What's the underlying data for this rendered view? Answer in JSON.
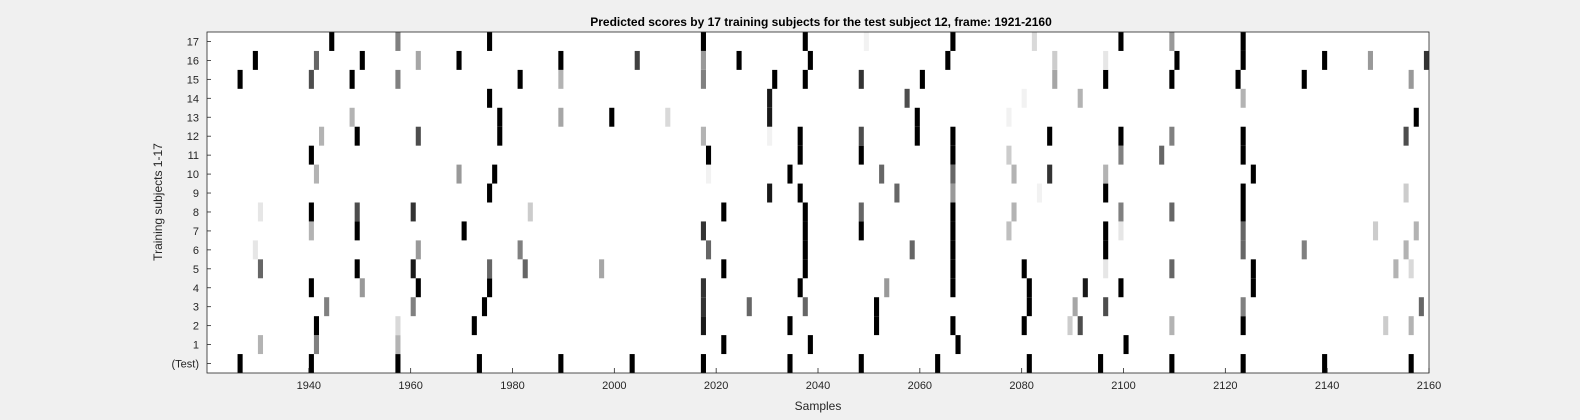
{
  "chart_data": {
    "type": "heatmap",
    "title": "Predicted scores by 17 training subjects for the test subject 12, frame: 1921-2160",
    "xlabel": "Samples",
    "ylabel": "Training subjects 1-17",
    "xlim": [
      1921,
      2160
    ],
    "xticks": [
      1940,
      1960,
      1980,
      2000,
      2020,
      2040,
      2060,
      2080,
      2100,
      2120,
      2140,
      2160
    ],
    "rows": [
      "(Test)",
      "1",
      "2",
      "3",
      "4",
      "5",
      "6",
      "7",
      "8",
      "9",
      "10",
      "11",
      "12",
      "13",
      "14",
      "15",
      "16",
      "17"
    ],
    "value_scale": "0 (white) to 1 (black)",
    "events": [
      {
        "row": "(Test)",
        "marks": [
          [
            1927,
            1
          ],
          [
            1941,
            1
          ],
          [
            1958,
            1
          ],
          [
            1974,
            1
          ],
          [
            1990,
            1
          ],
          [
            2004,
            1
          ],
          [
            2018,
            1
          ],
          [
            2035,
            1
          ],
          [
            2049,
            1
          ],
          [
            2064,
            1
          ],
          [
            2082,
            1
          ],
          [
            2096,
            1
          ],
          [
            2110,
            1
          ],
          [
            2124,
            1
          ],
          [
            2140,
            1
          ],
          [
            2157,
            1
          ]
        ]
      },
      {
        "row": "1",
        "marks": [
          [
            1931,
            0.3
          ],
          [
            1942,
            0.5
          ],
          [
            1958,
            0.3
          ],
          [
            2022,
            1
          ],
          [
            2039,
            1
          ],
          [
            2068,
            1
          ],
          [
            2101,
            1
          ]
        ]
      },
      {
        "row": "2",
        "marks": [
          [
            1942,
            1
          ],
          [
            1958,
            0.15
          ],
          [
            1973,
            1
          ],
          [
            2018,
            0.9
          ],
          [
            2035,
            1
          ],
          [
            2052,
            1
          ],
          [
            2067,
            1
          ],
          [
            2081,
            1
          ],
          [
            2090,
            0.2
          ],
          [
            2092,
            0.7
          ],
          [
            2110,
            0.3
          ],
          [
            2124,
            1
          ],
          [
            2152,
            0.2
          ],
          [
            2157,
            0.3
          ]
        ]
      },
      {
        "row": "3",
        "marks": [
          [
            1944,
            0.5
          ],
          [
            1961,
            0.5
          ],
          [
            1975,
            1
          ],
          [
            2018,
            0.8
          ],
          [
            2027,
            0.6
          ],
          [
            2038,
            0.6
          ],
          [
            2052,
            1
          ],
          [
            2082,
            1
          ],
          [
            2091,
            0.35
          ],
          [
            2097,
            0.7
          ],
          [
            2124,
            0.5
          ],
          [
            2159,
            0.6
          ]
        ]
      },
      {
        "row": "4",
        "marks": [
          [
            1941,
            1
          ],
          [
            1951,
            0.4
          ],
          [
            1962,
            1
          ],
          [
            1976,
            1
          ],
          [
            2018,
            0.8
          ],
          [
            2037,
            1
          ],
          [
            2054,
            0.4
          ],
          [
            2067,
            1
          ],
          [
            2082,
            1
          ],
          [
            2093,
            0.9
          ],
          [
            2100,
            1
          ],
          [
            2126,
            1
          ]
        ]
      },
      {
        "row": "5",
        "marks": [
          [
            1931,
            0.6
          ],
          [
            1950,
            1
          ],
          [
            1961,
            0.9
          ],
          [
            1976,
            0.6
          ],
          [
            1983,
            0.6
          ],
          [
            1998,
            0.35
          ],
          [
            2022,
            1
          ],
          [
            2038,
            1
          ],
          [
            2067,
            1
          ],
          [
            2081,
            1
          ],
          [
            2097,
            0.1
          ],
          [
            2110,
            0.6
          ],
          [
            2126,
            1
          ],
          [
            2154,
            0.3
          ],
          [
            2157,
            0.15
          ]
        ]
      },
      {
        "row": "6",
        "marks": [
          [
            1930,
            0.1
          ],
          [
            1962,
            0.4
          ],
          [
            1982,
            0.5
          ],
          [
            2019,
            0.6
          ],
          [
            2038,
            1
          ],
          [
            2059,
            0.6
          ],
          [
            2067,
            1
          ],
          [
            2097,
            1
          ],
          [
            2124,
            0.6
          ],
          [
            2136,
            0.5
          ],
          [
            2156,
            0.3
          ]
        ]
      },
      {
        "row": "7",
        "marks": [
          [
            1941,
            0.3
          ],
          [
            1950,
            1
          ],
          [
            1971,
            1
          ],
          [
            2018,
            0.8
          ],
          [
            2038,
            1
          ],
          [
            2049,
            1
          ],
          [
            2067,
            1
          ],
          [
            2078,
            0.25
          ],
          [
            2097,
            1
          ],
          [
            2100,
            0.1
          ],
          [
            2124,
            0.6
          ],
          [
            2150,
            0.2
          ],
          [
            2158,
            0.3
          ]
        ]
      },
      {
        "row": "8",
        "marks": [
          [
            1931,
            0.1
          ],
          [
            1941,
            1
          ],
          [
            1950,
            0.7
          ],
          [
            1961,
            0.8
          ],
          [
            1984,
            0.2
          ],
          [
            2022,
            1
          ],
          [
            2038,
            1
          ],
          [
            2049,
            0.6
          ],
          [
            2067,
            1
          ],
          [
            2079,
            0.3
          ],
          [
            2100,
            0.5
          ],
          [
            2110,
            0.6
          ],
          [
            2124,
            1
          ]
        ]
      },
      {
        "row": "9",
        "marks": [
          [
            1976,
            1
          ],
          [
            2031,
            0.9
          ],
          [
            2037,
            1
          ],
          [
            2056,
            0.6
          ],
          [
            2067,
            0.4
          ],
          [
            2084,
            0.05
          ],
          [
            2097,
            1
          ],
          [
            2124,
            1
          ],
          [
            2156,
            0.2
          ]
        ]
      },
      {
        "row": "10",
        "marks": [
          [
            1942,
            0.3
          ],
          [
            1970,
            0.4
          ],
          [
            1977,
            1
          ],
          [
            2019,
            0.05
          ],
          [
            2035,
            1
          ],
          [
            2053,
            0.6
          ],
          [
            2067,
            0.6
          ],
          [
            2079,
            0.3
          ],
          [
            2086,
            0.8
          ],
          [
            2097,
            0.3
          ],
          [
            2126,
            1
          ]
        ]
      },
      {
        "row": "11",
        "marks": [
          [
            1941,
            1
          ],
          [
            2019,
            1
          ],
          [
            2037,
            1
          ],
          [
            2049,
            1
          ],
          [
            2067,
            1
          ],
          [
            2078,
            0.2
          ],
          [
            2100,
            0.5
          ],
          [
            2108,
            0.6
          ],
          [
            2124,
            1
          ]
        ]
      },
      {
        "row": "12",
        "marks": [
          [
            1943,
            0.3
          ],
          [
            1950,
            1
          ],
          [
            1962,
            0.7
          ],
          [
            1978,
            1
          ],
          [
            2018,
            0.3
          ],
          [
            2031,
            0.05
          ],
          [
            2037,
            1
          ],
          [
            2049,
            0.7
          ],
          [
            2060,
            1
          ],
          [
            2067,
            1
          ],
          [
            2086,
            1
          ],
          [
            2100,
            1
          ],
          [
            2110,
            0.5
          ],
          [
            2124,
            1
          ],
          [
            2156,
            0.7
          ]
        ]
      },
      {
        "row": "13",
        "marks": [
          [
            1949,
            0.3
          ],
          [
            1978,
            1
          ],
          [
            1990,
            0.35
          ],
          [
            2000,
            1
          ],
          [
            2011,
            0.15
          ],
          [
            2031,
            0.9
          ],
          [
            2060,
            1
          ],
          [
            2078,
            0.05
          ],
          [
            2158,
            1
          ]
        ]
      },
      {
        "row": "14",
        "marks": [
          [
            1976,
            1
          ],
          [
            2031,
            0.9
          ],
          [
            2058,
            0.7
          ],
          [
            2081,
            0.05
          ],
          [
            2092,
            0.3
          ],
          [
            2124,
            0.3
          ]
        ]
      },
      {
        "row": "15",
        "marks": [
          [
            1927,
            1
          ],
          [
            1941,
            0.7
          ],
          [
            1949,
            1
          ],
          [
            1958,
            0.5
          ],
          [
            1982,
            1
          ],
          [
            1990,
            0.3
          ],
          [
            2018,
            0.5
          ],
          [
            2032,
            1
          ],
          [
            2038,
            1
          ],
          [
            2049,
            0.8
          ],
          [
            2061,
            1
          ],
          [
            2087,
            0.35
          ],
          [
            2097,
            1
          ],
          [
            2110,
            1
          ],
          [
            2123,
            1
          ],
          [
            2136,
            1
          ],
          [
            2157,
            0.4
          ]
        ]
      },
      {
        "row": "16",
        "marks": [
          [
            1930,
            1
          ],
          [
            1942,
            0.6
          ],
          [
            1951,
            1
          ],
          [
            1962,
            0.35
          ],
          [
            1970,
            1
          ],
          [
            1990,
            1
          ],
          [
            2005,
            0.75
          ],
          [
            2018,
            0.4
          ],
          [
            2025,
            1
          ],
          [
            2039,
            1
          ],
          [
            2066,
            1
          ],
          [
            2087,
            0.2
          ],
          [
            2097,
            0.1
          ],
          [
            2111,
            1
          ],
          [
            2124,
            1
          ],
          [
            2140,
            1
          ],
          [
            2149,
            0.4
          ],
          [
            2160,
            0.8
          ]
        ]
      },
      {
        "row": "17",
        "marks": [
          [
            1945,
            1
          ],
          [
            1958,
            0.5
          ],
          [
            1976,
            1
          ],
          [
            2018,
            1
          ],
          [
            2038,
            1
          ],
          [
            2050,
            0.05
          ],
          [
            2067,
            1
          ],
          [
            2083,
            0.15
          ],
          [
            2100,
            1
          ],
          [
            2110,
            0.4
          ],
          [
            2124,
            1
          ]
        ]
      }
    ]
  }
}
